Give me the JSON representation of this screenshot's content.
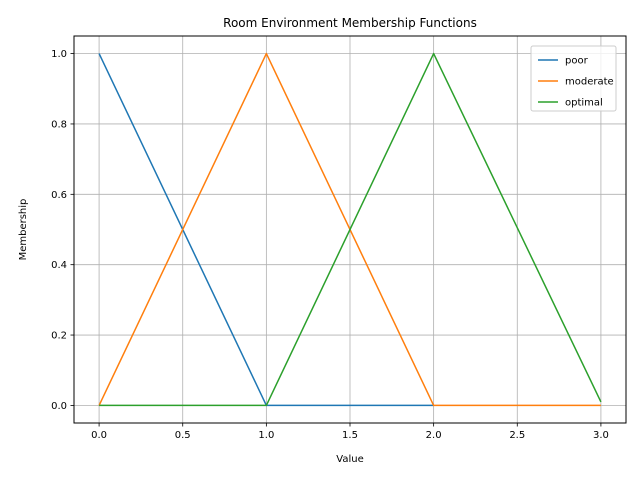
{
  "chart_data": {
    "type": "line",
    "title": "Room Environment Membership Functions",
    "xlabel": "Value",
    "ylabel": "Membership",
    "xlim": [
      -0.15,
      3.15
    ],
    "ylim": [
      -0.05,
      1.05
    ],
    "xticks": [
      0.0,
      0.5,
      1.0,
      1.5,
      2.0,
      2.5,
      3.0
    ],
    "xtick_labels": [
      "0.0",
      "0.5",
      "1.0",
      "1.5",
      "2.0",
      "2.5",
      "3.0"
    ],
    "yticks": [
      0.0,
      0.2,
      0.4,
      0.6,
      0.8,
      1.0
    ],
    "ytick_labels": [
      "0.0",
      "0.2",
      "0.4",
      "0.6",
      "0.8",
      "1.0"
    ],
    "grid": true,
    "legend_position": "top-right",
    "series": [
      {
        "name": "poor",
        "color": "#1f77b4",
        "points": [
          [
            0,
            1.0
          ],
          [
            1,
            0.0
          ],
          [
            2,
            0.0
          ]
        ]
      },
      {
        "name": "moderate",
        "color": "#ff7f0e",
        "points": [
          [
            0,
            0.0
          ],
          [
            1,
            1.0
          ],
          [
            2,
            0.0
          ],
          [
            3,
            0.0
          ]
        ]
      },
      {
        "name": "optimal",
        "color": "#2ca02c",
        "points": [
          [
            0,
            0.0
          ],
          [
            1,
            0.0
          ],
          [
            2,
            1.0
          ],
          [
            3,
            0.01
          ]
        ]
      }
    ]
  }
}
